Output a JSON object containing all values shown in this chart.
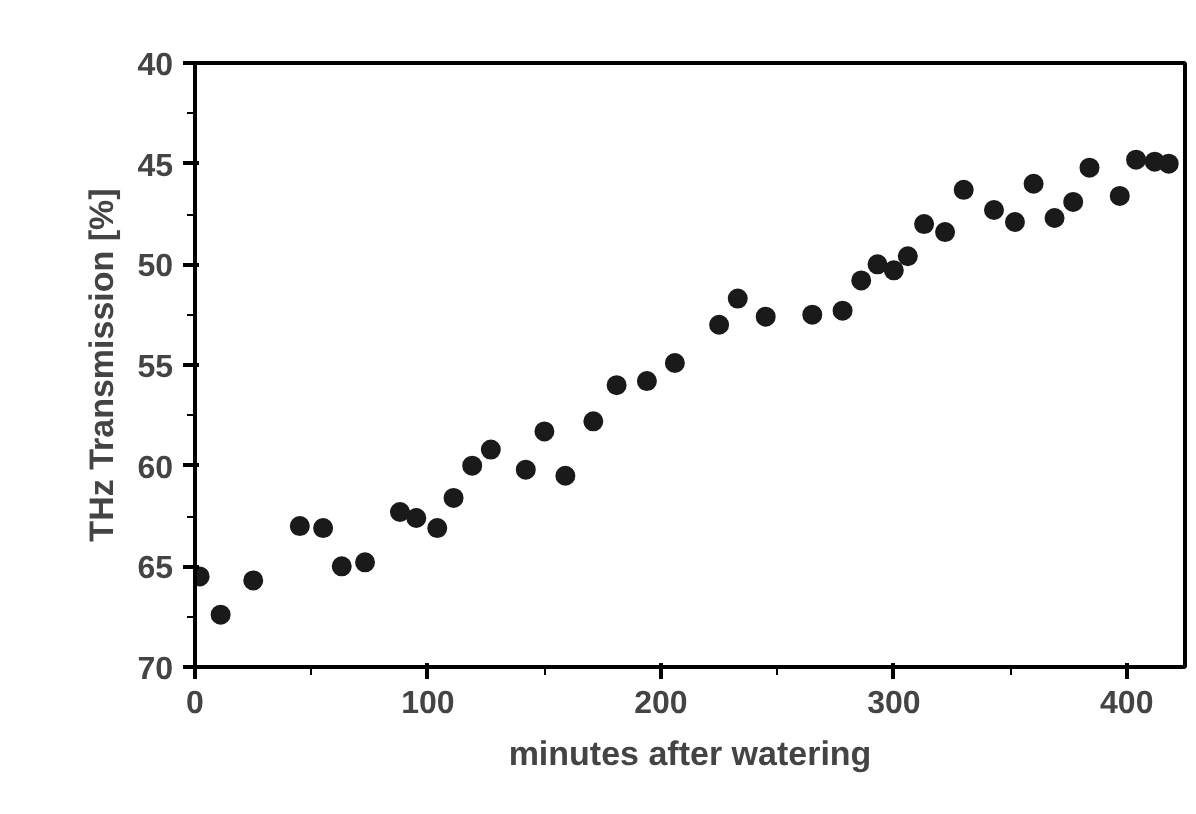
{
  "chart_data": {
    "type": "scatter",
    "xlabel": "minutes after watering",
    "ylabel": "THz Transmission [%]",
    "x": [
      2,
      11,
      25,
      45,
      55,
      63,
      73,
      88,
      95,
      104,
      111,
      119,
      127,
      142,
      150,
      159,
      171,
      181,
      194,
      206,
      225,
      233,
      245,
      265,
      278,
      286,
      293,
      300,
      306,
      313,
      322,
      330,
      343,
      352,
      360,
      369,
      377,
      384,
      397,
      404,
      412,
      418
    ],
    "series": [
      {
        "color": "#1a1a1a",
        "values": [
          65.5,
          67.4,
          65.7,
          63.0,
          63.1,
          65.0,
          64.8,
          62.3,
          62.6,
          63.1,
          61.6,
          60.0,
          59.2,
          60.2,
          58.3,
          60.5,
          57.8,
          56.0,
          55.8,
          54.9,
          53.0,
          51.7,
          52.6,
          52.5,
          52.3,
          50.8,
          50.0,
          50.3,
          49.6,
          48.0,
          48.4,
          46.3,
          47.3,
          47.9,
          46.0,
          47.7,
          46.9,
          45.2,
          46.6,
          44.8,
          44.9,
          45.0
        ]
      }
    ],
    "xlim": [
      0,
      425
    ],
    "ylim": [
      70,
      40
    ],
    "xticks": [
      0,
      {
        "value": 50,
        "label": null
      },
      100,
      {
        "value": 150,
        "label": null
      },
      200,
      {
        "value": 250,
        "label": null
      },
      300,
      {
        "value": 350,
        "label": null
      },
      400
    ],
    "yticks": [
      40,
      {
        "value": 42.5,
        "label": null
      },
      45,
      {
        "value": 47.5,
        "label": null
      },
      50,
      {
        "value": 52.5,
        "label": null
      },
      55,
      {
        "value": 57.5,
        "label": null
      },
      60,
      {
        "value": 62.5,
        "label": null
      },
      65,
      {
        "value": 67.5,
        "label": null
      },
      70
    ],
    "grid": false,
    "marker": "circle"
  }
}
